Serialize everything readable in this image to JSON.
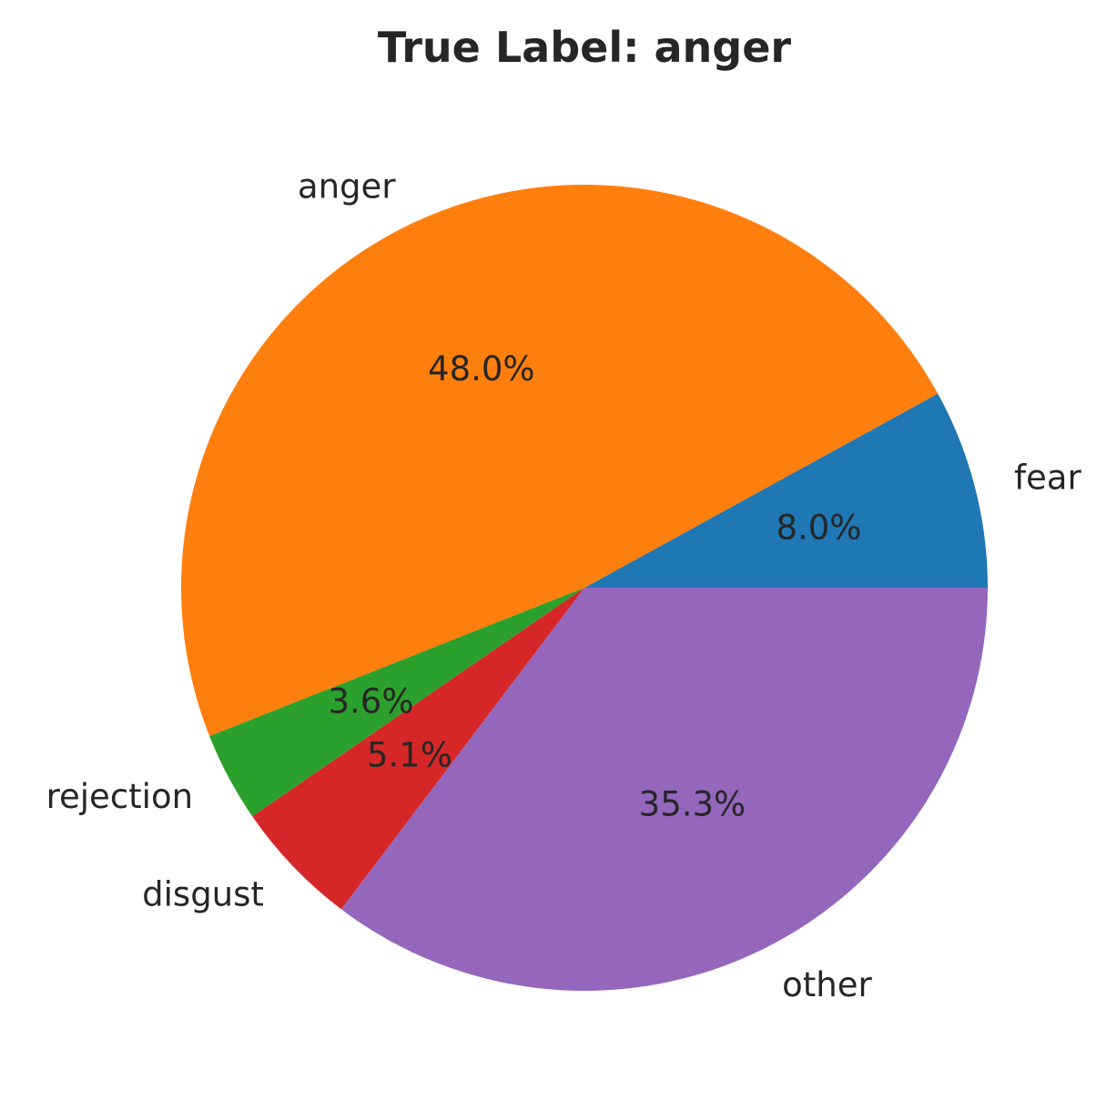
{
  "chart_data": {
    "type": "pie",
    "title": "True Label: anger",
    "start_angle_deg": 0,
    "direction": "counterclockwise",
    "slices": [
      {
        "label": "fear",
        "value": 8.0,
        "pct_text": "8.0%",
        "color": "#1f77b4"
      },
      {
        "label": "anger",
        "value": 48.0,
        "pct_text": "48.0%",
        "color": "#ff7f0e"
      },
      {
        "label": "rejection",
        "value": 3.6,
        "pct_text": "3.6%",
        "color": "#2ca02c"
      },
      {
        "label": "disgust",
        "value": 5.1,
        "pct_text": "5.1%",
        "color": "#d62728"
      },
      {
        "label": "other",
        "value": 35.3,
        "pct_text": "35.3%",
        "color": "#9467bd"
      }
    ]
  }
}
